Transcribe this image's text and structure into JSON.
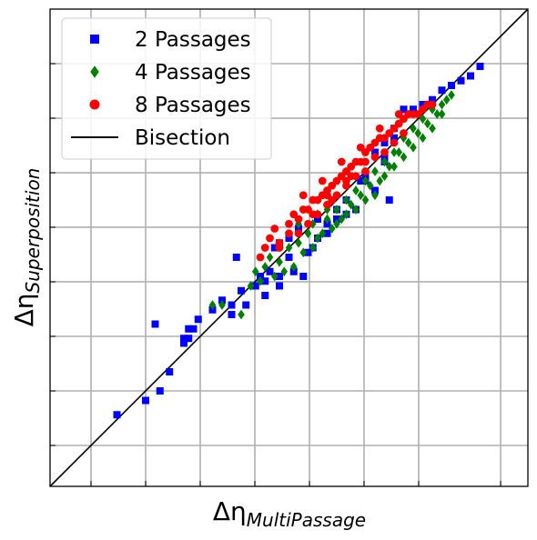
{
  "chart_data": {
    "type": "scatter",
    "title": "",
    "xlabel": {
      "main": "Δη",
      "sub": "MultiPassage"
    },
    "ylabel": {
      "main": "Δη",
      "sub": "Superposition"
    },
    "xlim": [
      0,
      1
    ],
    "ylim": [
      0,
      1
    ],
    "x_ticks": [
      0.0857,
      0.2,
      0.3143,
      0.4286,
      0.5429,
      0.6571,
      0.7714,
      0.9429
    ],
    "y_ticks": [
      0.0857,
      0.2,
      0.3143,
      0.4286,
      0.5429,
      0.6571,
      0.7714,
      0.8857
    ],
    "tick_labels_visible": false,
    "grid": true,
    "legend_position": "top-left",
    "reference_line": {
      "name": "Bisection",
      "x": [
        0,
        1
      ],
      "y": [
        0,
        1
      ],
      "color": "#000000"
    },
    "series": [
      {
        "name": "2 Passages",
        "marker": "square",
        "color": "#0000ff",
        "points": [
          [
            0.14,
            0.15
          ],
          [
            0.2,
            0.18
          ],
          [
            0.23,
            0.2
          ],
          [
            0.25,
            0.24
          ],
          [
            0.22,
            0.34
          ],
          [
            0.28,
            0.3
          ],
          [
            0.28,
            0.31
          ],
          [
            0.29,
            0.31
          ],
          [
            0.29,
            0.33
          ],
          [
            0.3,
            0.33
          ],
          [
            0.31,
            0.35
          ],
          [
            0.34,
            0.37
          ],
          [
            0.36,
            0.39
          ],
          [
            0.38,
            0.38
          ],
          [
            0.38,
            0.36
          ],
          [
            0.41,
            0.38
          ],
          [
            0.4,
            0.41
          ],
          [
            0.43,
            0.42
          ],
          [
            0.45,
            0.43
          ],
          [
            0.44,
            0.44
          ],
          [
            0.46,
            0.45
          ],
          [
            0.45,
            0.4
          ],
          [
            0.48,
            0.44
          ],
          [
            0.48,
            0.42
          ],
          [
            0.51,
            0.45
          ],
          [
            0.53,
            0.44
          ],
          [
            0.5,
            0.48
          ],
          [
            0.56,
            0.52
          ],
          [
            0.52,
            0.54
          ],
          [
            0.5,
            0.52
          ],
          [
            0.47,
            0.5
          ],
          [
            0.48,
            0.51
          ],
          [
            0.55,
            0.5
          ],
          [
            0.54,
            0.49
          ],
          [
            0.58,
            0.55
          ],
          [
            0.6,
            0.56
          ],
          [
            0.6,
            0.58
          ],
          [
            0.62,
            0.6
          ],
          [
            0.65,
            0.64
          ],
          [
            0.7,
            0.68
          ],
          [
            0.7,
            0.72
          ],
          [
            0.72,
            0.75
          ],
          [
            0.74,
            0.79
          ],
          [
            0.76,
            0.79
          ],
          [
            0.78,
            0.8
          ],
          [
            0.8,
            0.81
          ],
          [
            0.82,
            0.83
          ],
          [
            0.84,
            0.84
          ],
          [
            0.86,
            0.85
          ],
          [
            0.88,
            0.86
          ],
          [
            0.9,
            0.88
          ],
          [
            0.68,
            0.7
          ],
          [
            0.72,
            0.73
          ],
          [
            0.66,
            0.64
          ],
          [
            0.71,
            0.6
          ],
          [
            0.68,
            0.62
          ],
          [
            0.62,
            0.57
          ],
          [
            0.64,
            0.58
          ],
          [
            0.58,
            0.53
          ],
          [
            0.56,
            0.56
          ],
          [
            0.39,
            0.48
          ],
          [
            0.66,
            0.65
          ],
          [
            0.7,
            0.69
          ]
        ]
      },
      {
        "name": "4 Passages",
        "marker": "diamond",
        "color": "#008000",
        "points": [
          [
            0.34,
            0.38
          ],
          [
            0.36,
            0.38
          ],
          [
            0.4,
            0.36
          ],
          [
            0.42,
            0.42
          ],
          [
            0.44,
            0.43
          ],
          [
            0.43,
            0.45
          ],
          [
            0.46,
            0.48
          ],
          [
            0.48,
            0.47
          ],
          [
            0.5,
            0.5
          ],
          [
            0.52,
            0.51
          ],
          [
            0.54,
            0.53
          ],
          [
            0.55,
            0.55
          ],
          [
            0.56,
            0.52
          ],
          [
            0.58,
            0.56
          ],
          [
            0.6,
            0.58
          ],
          [
            0.62,
            0.6
          ],
          [
            0.64,
            0.62
          ],
          [
            0.66,
            0.64
          ],
          [
            0.68,
            0.66
          ],
          [
            0.7,
            0.68
          ],
          [
            0.72,
            0.7
          ],
          [
            0.74,
            0.73
          ],
          [
            0.76,
            0.75
          ],
          [
            0.78,
            0.77
          ],
          [
            0.8,
            0.79
          ],
          [
            0.82,
            0.8
          ],
          [
            0.84,
            0.82
          ],
          [
            0.83,
            0.81
          ],
          [
            0.81,
            0.78
          ],
          [
            0.79,
            0.76
          ],
          [
            0.77,
            0.74
          ],
          [
            0.75,
            0.72
          ],
          [
            0.73,
            0.7
          ],
          [
            0.71,
            0.67
          ],
          [
            0.69,
            0.64
          ],
          [
            0.67,
            0.63
          ],
          [
            0.65,
            0.61
          ],
          [
            0.63,
            0.59
          ],
          [
            0.61,
            0.56
          ],
          [
            0.59,
            0.54
          ],
          [
            0.57,
            0.53
          ],
          [
            0.55,
            0.5
          ],
          [
            0.53,
            0.49
          ],
          [
            0.51,
            0.46
          ],
          [
            0.49,
            0.45
          ],
          [
            0.47,
            0.44
          ],
          [
            0.45,
            0.46
          ],
          [
            0.6,
            0.55
          ],
          [
            0.62,
            0.57
          ],
          [
            0.64,
            0.58
          ],
          [
            0.66,
            0.6
          ],
          [
            0.68,
            0.61
          ],
          [
            0.7,
            0.65
          ],
          [
            0.72,
            0.67
          ],
          [
            0.74,
            0.69
          ],
          [
            0.76,
            0.71
          ],
          [
            0.78,
            0.73
          ],
          [
            0.8,
            0.75
          ],
          [
            0.82,
            0.78
          ],
          [
            0.52,
            0.55
          ],
          [
            0.56,
            0.57
          ],
          [
            0.58,
            0.58
          ]
        ]
      },
      {
        "name": "8 Passages",
        "marker": "circle",
        "color": "#ff0000",
        "points": [
          [
            0.44,
            0.48
          ],
          [
            0.45,
            0.5
          ],
          [
            0.46,
            0.52
          ],
          [
            0.48,
            0.51
          ],
          [
            0.5,
            0.53
          ],
          [
            0.5,
            0.55
          ],
          [
            0.51,
            0.57
          ],
          [
            0.52,
            0.56
          ],
          [
            0.53,
            0.58
          ],
          [
            0.54,
            0.58
          ],
          [
            0.55,
            0.6
          ],
          [
            0.56,
            0.6
          ],
          [
            0.57,
            0.61
          ],
          [
            0.58,
            0.62
          ],
          [
            0.59,
            0.63
          ],
          [
            0.6,
            0.64
          ],
          [
            0.61,
            0.65
          ],
          [
            0.62,
            0.66
          ],
          [
            0.63,
            0.67
          ],
          [
            0.64,
            0.68
          ],
          [
            0.65,
            0.68
          ],
          [
            0.66,
            0.7
          ],
          [
            0.67,
            0.71
          ],
          [
            0.68,
            0.72
          ],
          [
            0.69,
            0.73
          ],
          [
            0.7,
            0.73
          ],
          [
            0.71,
            0.74
          ],
          [
            0.72,
            0.75
          ],
          [
            0.73,
            0.76
          ],
          [
            0.74,
            0.77
          ],
          [
            0.75,
            0.78
          ],
          [
            0.76,
            0.78
          ],
          [
            0.77,
            0.78
          ],
          [
            0.78,
            0.79
          ],
          [
            0.79,
            0.8
          ],
          [
            0.8,
            0.8
          ],
          [
            0.52,
            0.53
          ],
          [
            0.54,
            0.55
          ],
          [
            0.56,
            0.57
          ],
          [
            0.58,
            0.59
          ],
          [
            0.6,
            0.61
          ],
          [
            0.62,
            0.63
          ],
          [
            0.64,
            0.65
          ],
          [
            0.66,
            0.66
          ],
          [
            0.68,
            0.69
          ],
          [
            0.7,
            0.7
          ],
          [
            0.72,
            0.72
          ],
          [
            0.74,
            0.74
          ],
          [
            0.48,
            0.5
          ],
          [
            0.47,
            0.54
          ],
          [
            0.53,
            0.61
          ],
          [
            0.57,
            0.64
          ],
          [
            0.61,
            0.68
          ],
          [
            0.65,
            0.71
          ],
          [
            0.69,
            0.75
          ],
          [
            0.73,
            0.78
          ],
          [
            0.58,
            0.61
          ],
          [
            0.62,
            0.64
          ],
          [
            0.66,
            0.68
          ],
          [
            0.55,
            0.57
          ],
          [
            0.59,
            0.6
          ],
          [
            0.63,
            0.65
          ]
        ]
      }
    ],
    "legend": {
      "entries": [
        {
          "label": "2 Passages",
          "marker": "square",
          "color": "#0000ff"
        },
        {
          "label": "4 Passages",
          "marker": "diamond",
          "color": "#008000"
        },
        {
          "label": "8 Passages",
          "marker": "circle",
          "color": "#ff0000"
        },
        {
          "label": "Bisection",
          "marker": "line",
          "color": "#000000"
        }
      ]
    }
  }
}
